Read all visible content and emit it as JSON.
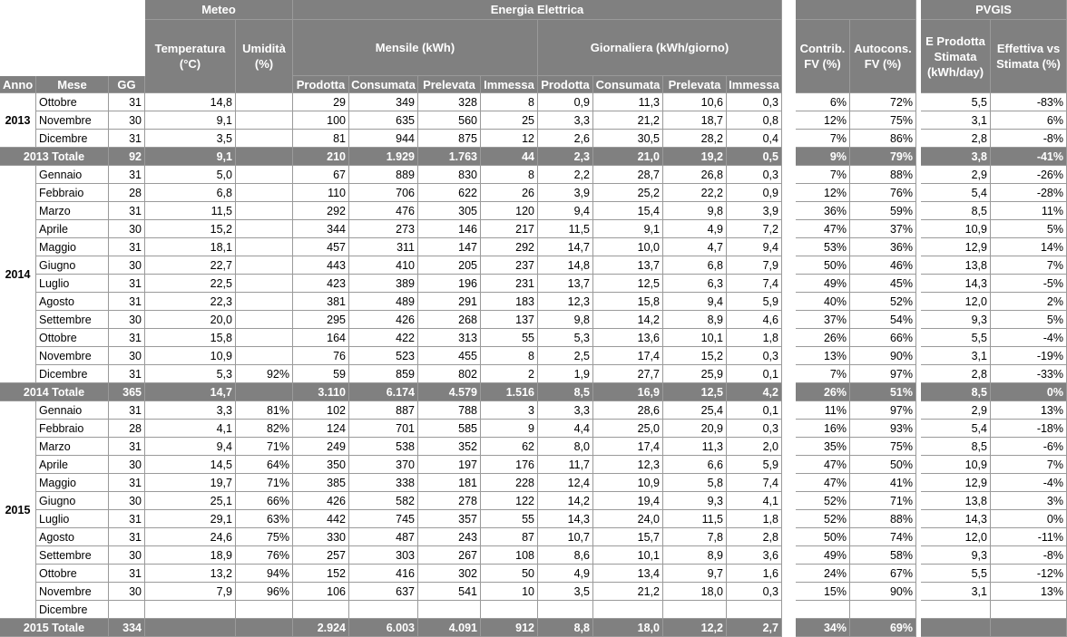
{
  "header": {
    "top": [
      "Meteo",
      "Energia Elettrica",
      "PVGIS"
    ],
    "middle": [
      "Temperatura (°C)",
      "Umidità (%)",
      "Mensile (kWh)",
      "Giornaliera (kWh/giorno)",
      "Contrib. FV (%)",
      "Autocons. FV (%)",
      "E Prodotta Stimata (kWh/day)",
      "Effettiva vs Stimata (%)"
    ],
    "bottom": [
      "Anno",
      "Mese",
      "GG",
      "Prodotta",
      "Consumata",
      "Prelevata",
      "Immessa",
      "Prodotta",
      "Consumata",
      "Prelevata",
      "Immessa"
    ]
  },
  "table": {
    "years": [
      {
        "year": "2013",
        "months": [
          [
            "Ottobre",
            "31",
            "14,8",
            null,
            "29",
            "349",
            "328",
            "8",
            "0,9",
            "11,3",
            "10,6",
            "0,3",
            "6%",
            "72%",
            "5,5",
            "-83%"
          ],
          [
            "Novembre",
            "30",
            "9,1",
            null,
            "100",
            "635",
            "560",
            "25",
            "3,3",
            "21,2",
            "18,7",
            "0,8",
            "12%",
            "75%",
            "3,1",
            "6%"
          ],
          [
            "Dicembre",
            "31",
            "3,5",
            null,
            "81",
            "944",
            "875",
            "12",
            "2,6",
            "30,5",
            "28,2",
            "0,4",
            "7%",
            "86%",
            "2,8",
            "-8%"
          ]
        ],
        "total": {
          "label": "2013 Totale",
          "cells": [
            "92",
            "9,1",
            null,
            "210",
            "1.929",
            "1.763",
            "44",
            "2,3",
            "21,0",
            "19,2",
            "0,5",
            "9%",
            "79%",
            "3,8",
            "-41%"
          ]
        }
      },
      {
        "year": "2014",
        "months": [
          [
            "Gennaio",
            "31",
            "5,0",
            null,
            "67",
            "889",
            "830",
            "8",
            "2,2",
            "28,7",
            "26,8",
            "0,3",
            "7%",
            "88%",
            "2,9",
            "-26%"
          ],
          [
            "Febbraio",
            "28",
            "6,8",
            null,
            "110",
            "706",
            "622",
            "26",
            "3,9",
            "25,2",
            "22,2",
            "0,9",
            "12%",
            "76%",
            "5,4",
            "-28%"
          ],
          [
            "Marzo",
            "31",
            "11,5",
            null,
            "292",
            "476",
            "305",
            "120",
            "9,4",
            "15,4",
            "9,8",
            "3,9",
            "36%",
            "59%",
            "8,5",
            "11%"
          ],
          [
            "Aprile",
            "30",
            "15,2",
            null,
            "344",
            "273",
            "146",
            "217",
            "11,5",
            "9,1",
            "4,9",
            "7,2",
            "47%",
            "37%",
            "10,9",
            "5%"
          ],
          [
            "Maggio",
            "31",
            "18,1",
            null,
            "457",
            "311",
            "147",
            "292",
            "14,7",
            "10,0",
            "4,7",
            "9,4",
            "53%",
            "36%",
            "12,9",
            "14%"
          ],
          [
            "Giugno",
            "30",
            "22,7",
            null,
            "443",
            "410",
            "205",
            "237",
            "14,8",
            "13,7",
            "6,8",
            "7,9",
            "50%",
            "46%",
            "13,8",
            "7%"
          ],
          [
            "Luglio",
            "31",
            "22,5",
            null,
            "423",
            "389",
            "196",
            "231",
            "13,7",
            "12,5",
            "6,3",
            "7,4",
            "49%",
            "45%",
            "14,3",
            "-5%"
          ],
          [
            "Agosto",
            "31",
            "22,3",
            null,
            "381",
            "489",
            "291",
            "183",
            "12,3",
            "15,8",
            "9,4",
            "5,9",
            "40%",
            "52%",
            "12,0",
            "2%"
          ],
          [
            "Settembre",
            "30",
            "20,0",
            null,
            "295",
            "426",
            "268",
            "137",
            "9,8",
            "14,2",
            "8,9",
            "4,6",
            "37%",
            "54%",
            "9,3",
            "5%"
          ],
          [
            "Ottobre",
            "31",
            "15,8",
            null,
            "164",
            "422",
            "313",
            "55",
            "5,3",
            "13,6",
            "10,1",
            "1,8",
            "26%",
            "66%",
            "5,5",
            "-4%"
          ],
          [
            "Novembre",
            "30",
            "10,9",
            null,
            "76",
            "523",
            "455",
            "8",
            "2,5",
            "17,4",
            "15,2",
            "0,3",
            "13%",
            "90%",
            "3,1",
            "-19%"
          ],
          [
            "Dicembre",
            "31",
            "5,3",
            "92%",
            "59",
            "859",
            "802",
            "2",
            "1,9",
            "27,7",
            "25,9",
            "0,1",
            "7%",
            "97%",
            "2,8",
            "-33%"
          ]
        ],
        "total": {
          "label": "2014 Totale",
          "cells": [
            "365",
            "14,7",
            null,
            "3.110",
            "6.174",
            "4.579",
            "1.516",
            "8,5",
            "16,9",
            "12,5",
            "4,2",
            "26%",
            "51%",
            "8,5",
            "0%"
          ]
        }
      },
      {
        "year": "2015",
        "months": [
          [
            "Gennaio",
            "31",
            "3,3",
            "81%",
            "102",
            "887",
            "788",
            "3",
            "3,3",
            "28,6",
            "25,4",
            "0,1",
            "11%",
            "97%",
            "2,9",
            "13%"
          ],
          [
            "Febbraio",
            "28",
            "4,1",
            "82%",
            "124",
            "701",
            "585",
            "9",
            "4,4",
            "25,0",
            "20,9",
            "0,3",
            "16%",
            "93%",
            "5,4",
            "-18%"
          ],
          [
            "Marzo",
            "31",
            "9,4",
            "71%",
            "249",
            "538",
            "352",
            "62",
            "8,0",
            "17,4",
            "11,3",
            "2,0",
            "35%",
            "75%",
            "8,5",
            "-6%"
          ],
          [
            "Aprile",
            "30",
            "14,5",
            "64%",
            "350",
            "370",
            "197",
            "176",
            "11,7",
            "12,3",
            "6,6",
            "5,9",
            "47%",
            "50%",
            "10,9",
            "7%"
          ],
          [
            "Maggio",
            "31",
            "19,7",
            "71%",
            "385",
            "338",
            "181",
            "228",
            "12,4",
            "10,9",
            "5,8",
            "7,4",
            "47%",
            "41%",
            "12,9",
            "-4%"
          ],
          [
            "Giugno",
            "30",
            "25,1",
            "66%",
            "426",
            "582",
            "278",
            "122",
            "14,2",
            "19,4",
            "9,3",
            "4,1",
            "52%",
            "71%",
            "13,8",
            "3%"
          ],
          [
            "Luglio",
            "31",
            "29,1",
            "63%",
            "442",
            "745",
            "357",
            "55",
            "14,3",
            "24,0",
            "11,5",
            "1,8",
            "52%",
            "88%",
            "14,3",
            "0%"
          ],
          [
            "Agosto",
            "31",
            "24,6",
            "75%",
            "330",
            "487",
            "243",
            "87",
            "10,7",
            "15,7",
            "7,8",
            "2,8",
            "50%",
            "74%",
            "12,0",
            "-11%"
          ],
          [
            "Settembre",
            "30",
            "18,9",
            "76%",
            "257",
            "303",
            "267",
            "108",
            "8,6",
            "10,1",
            "8,9",
            "3,6",
            "49%",
            "58%",
            "9,3",
            "-8%"
          ],
          [
            "Ottobre",
            "31",
            "13,2",
            "94%",
            "152",
            "416",
            "302",
            "50",
            "4,9",
            "13,4",
            "9,7",
            "1,6",
            "24%",
            "67%",
            "5,5",
            "-12%"
          ],
          [
            "Novembre",
            "30",
            "7,9",
            "96%",
            "106",
            "637",
            "541",
            "10",
            "3,5",
            "21,2",
            "18,0",
            "0,3",
            "15%",
            "90%",
            "3,1",
            "13%"
          ],
          [
            "Dicembre",
            null,
            null,
            null,
            null,
            null,
            null,
            null,
            null,
            null,
            null,
            null,
            null,
            null,
            null,
            null
          ]
        ],
        "total": {
          "label": "2015 Totale",
          "cells": [
            "334",
            null,
            null,
            "2.924",
            "6.003",
            "4.091",
            "912",
            "8,8",
            "18,0",
            "12,2",
            "2,7",
            "34%",
            "69%",
            null,
            null
          ]
        }
      }
    ]
  }
}
